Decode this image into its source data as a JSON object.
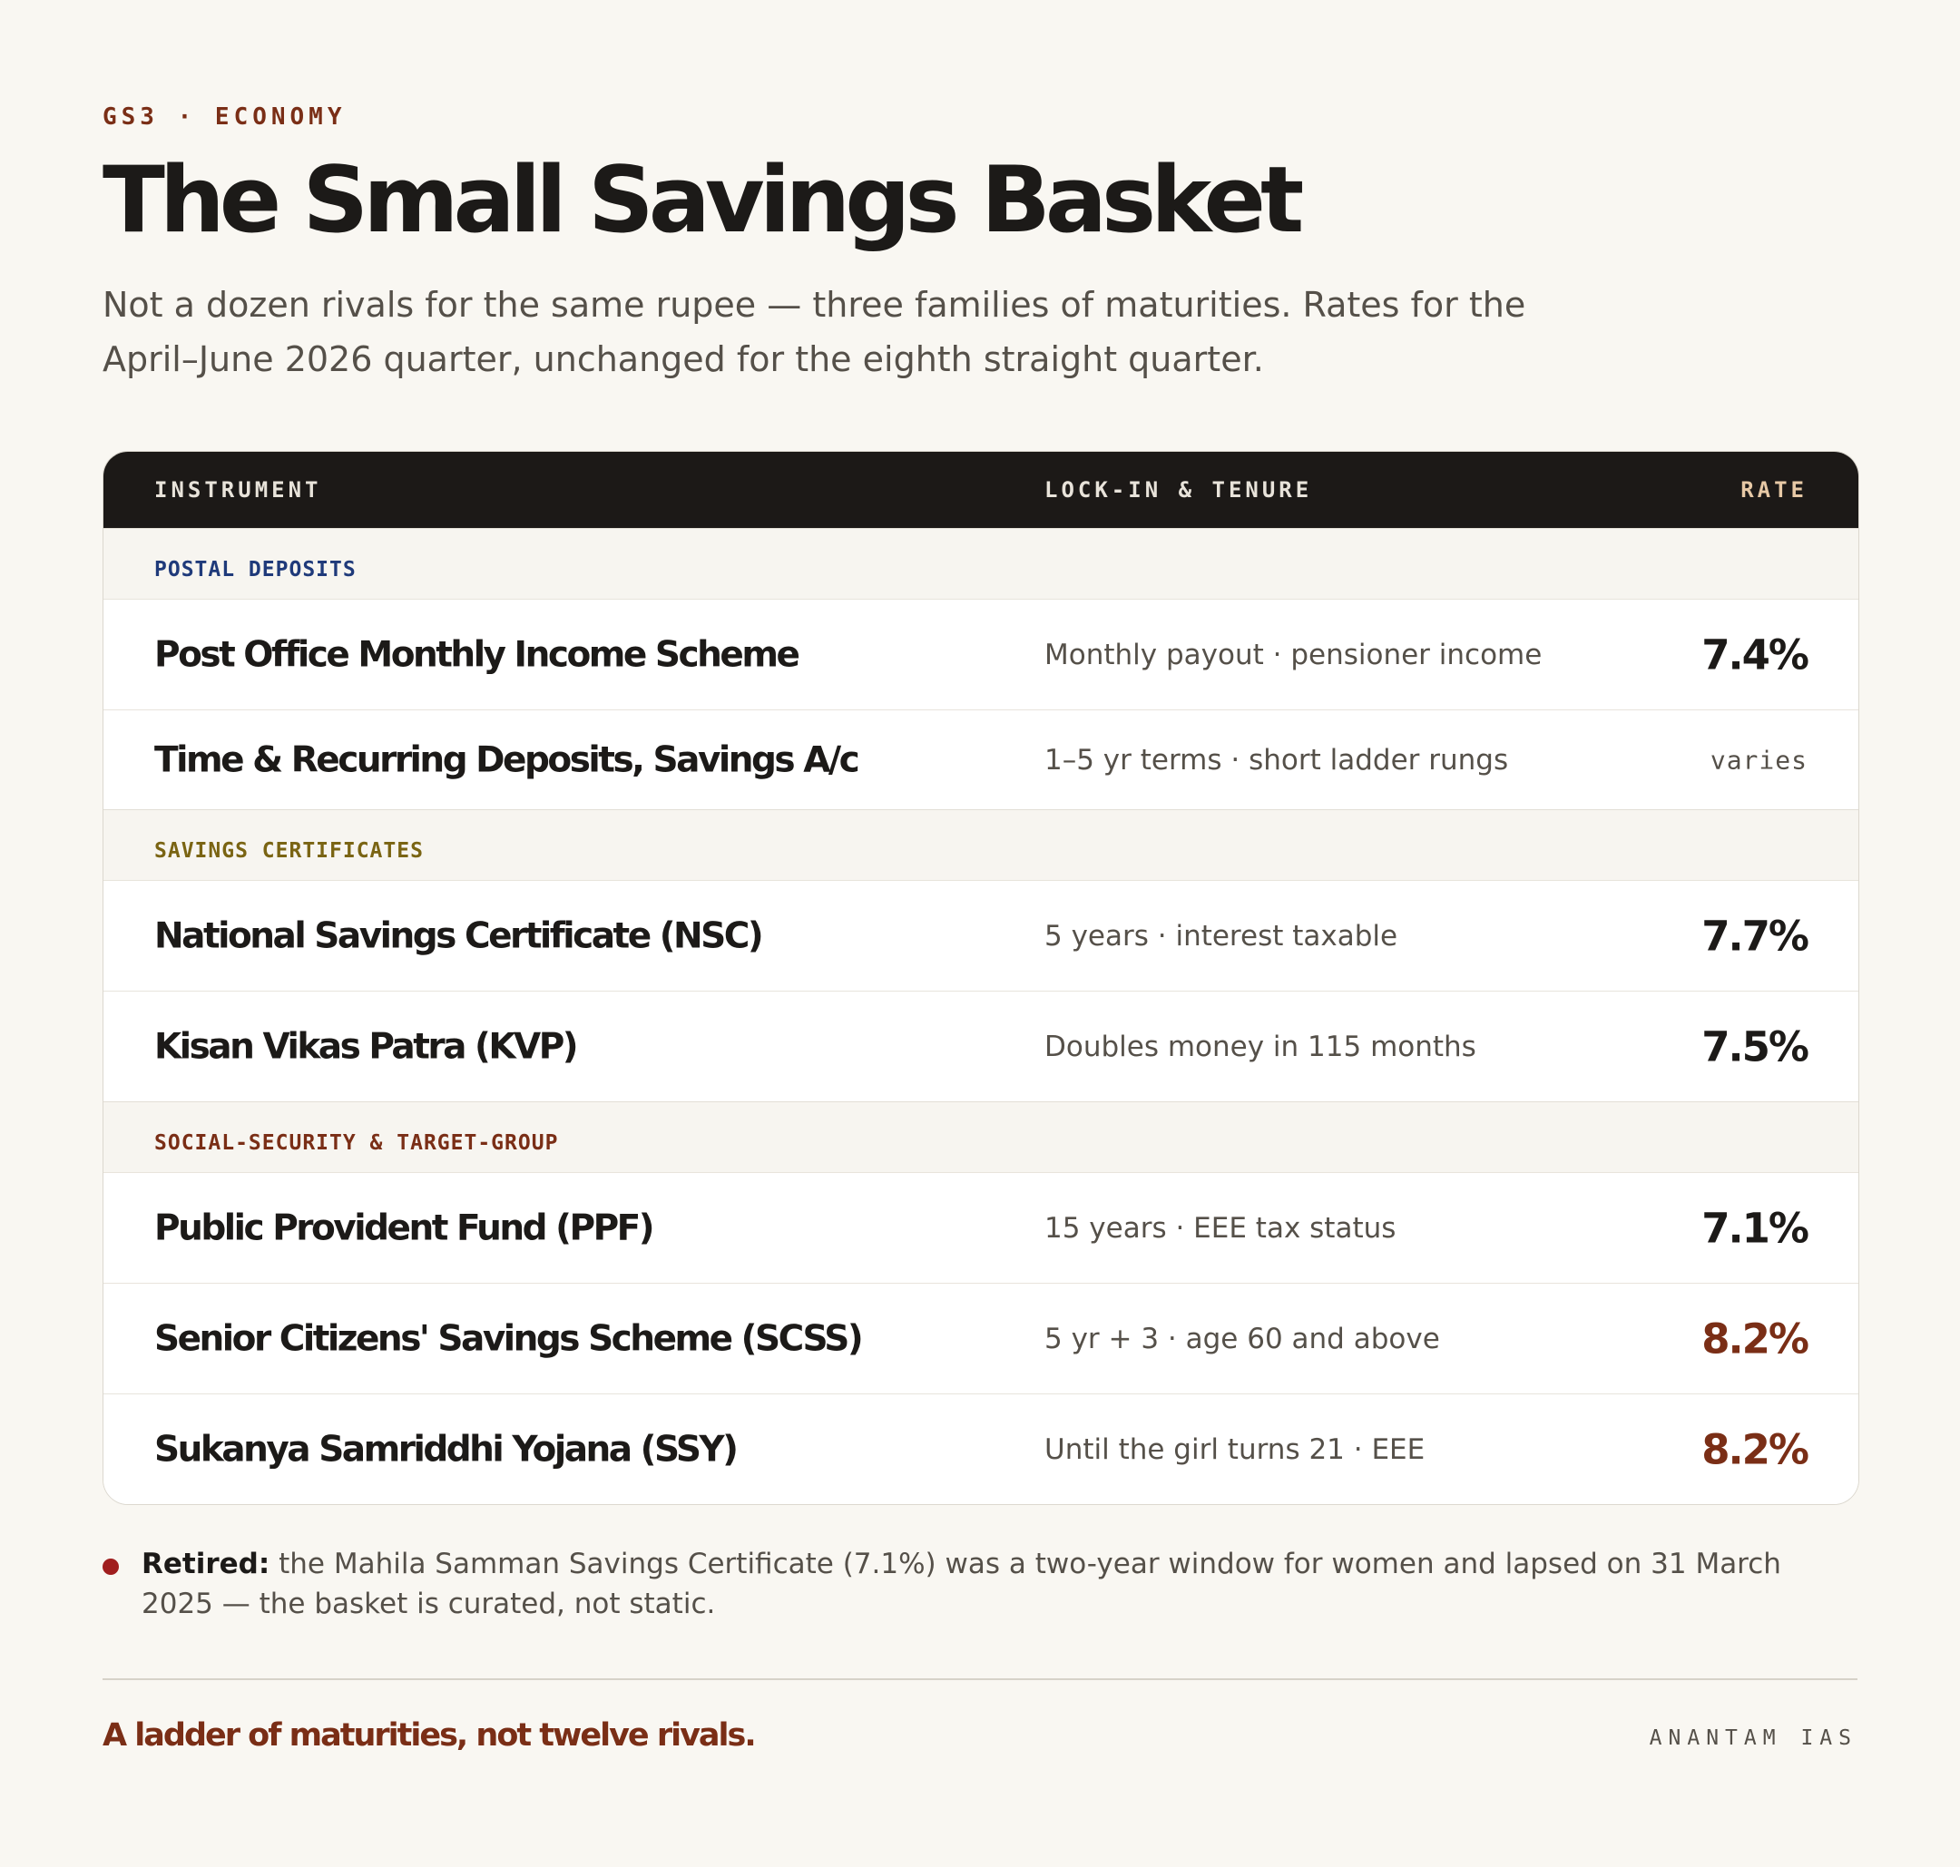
{
  "header": {
    "eyebrow": "GS3 · ECONOMY",
    "title": "The Small Savings Basket",
    "lede": "Not a dozen rivals for the same rupee — three families of maturities. Rates for the April–June 2026 quarter, unchanged for the eighth straight quarter."
  },
  "table": {
    "columns": {
      "instrument": "INSTRUMENT",
      "lock": "LOCK-IN & TENURE",
      "rate": "RATE"
    },
    "groups": [
      {
        "label": "POSTAL DEPOSITS",
        "rows": [
          {
            "name": "Post Office Monthly Income Scheme",
            "lock": "Monthly payout · pensioner income",
            "rate": "7.4%"
          },
          {
            "name": "Time & Recurring Deposits, Savings A/c",
            "lock": "1–5 yr terms · short ladder rungs",
            "rate": "varies"
          }
        ]
      },
      {
        "label": "SAVINGS CERTIFICATES",
        "rows": [
          {
            "name": "National Savings Certificate (NSC)",
            "lock": "5 years · interest taxable",
            "rate": "7.7%"
          },
          {
            "name": "Kisan Vikas Patra (KVP)",
            "lock": "Doubles money in 115 months",
            "rate": "7.5%"
          }
        ]
      },
      {
        "label": "SOCIAL-SECURITY & TARGET-GROUP",
        "rows": [
          {
            "name": "Public Provident Fund (PPF)",
            "lock": "15 years · EEE tax status",
            "rate": "7.1%"
          },
          {
            "name": "Senior Citizens' Savings Scheme (SCSS)",
            "lock": "5 yr + 3 · age 60 and above",
            "rate": "8.2%"
          },
          {
            "name": "Sukanya Samriddhi Yojana (SSY)",
            "lock": "Until the girl turns 21 · EEE",
            "rate": "8.2%"
          }
        ]
      }
    ]
  },
  "note": {
    "lead": "Retired:",
    "text": " the Mahila Samman Savings Certificate (7.1%) was a two-year window for women and lapsed on 31 March 2025 — the basket is curated, not static."
  },
  "footer": {
    "tagline": "A ladder of maturities, not twelve rivals.",
    "brand": "ANANTAM IAS"
  },
  "colors": {
    "accent": "#7a2e16",
    "postal": "#1f3a7a",
    "certificates": "#7a6413",
    "header_bg": "#1c1917",
    "page_bg": "#f9f7f2",
    "bullet": "#a01e1e"
  }
}
